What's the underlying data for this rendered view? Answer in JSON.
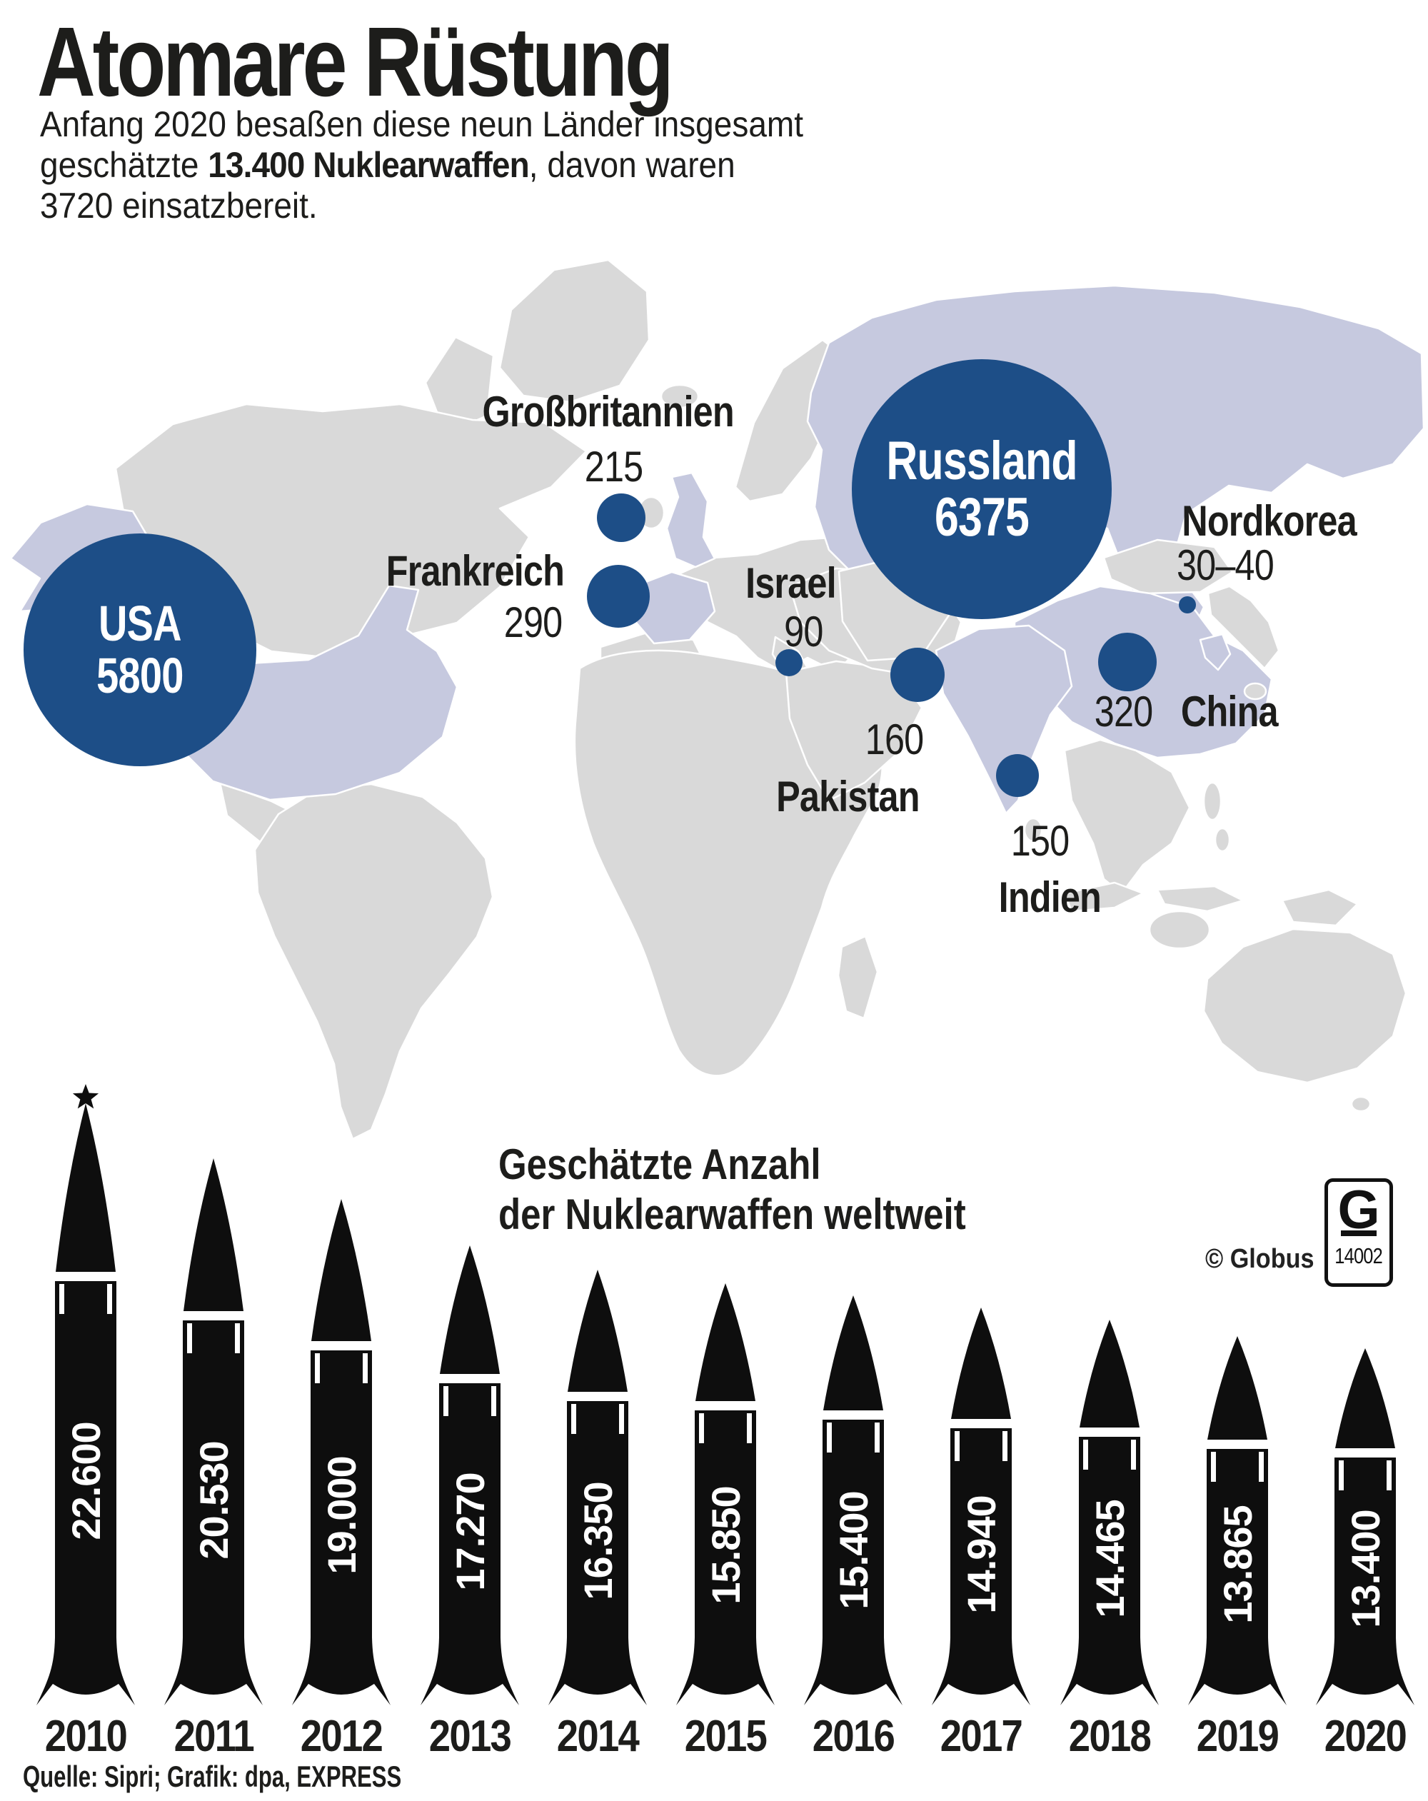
{
  "title": "Atomare Rüstung",
  "subtitle": {
    "line1": "Anfang 2020 besaßen diese neun Länder insgesamt",
    "line2_pre": "geschätzte ",
    "line2_bold": "13.400 Nuklearwaffen",
    "line2_post": ", davon waren",
    "line3": "3720 einsatzbereit."
  },
  "map": {
    "countries": [
      {
        "id": "usa",
        "name": "USA",
        "value": "5800"
      },
      {
        "id": "russland",
        "name": "Russland",
        "value": "6375"
      },
      {
        "id": "grossbritannien",
        "name": "Großbritannien",
        "value": "215"
      },
      {
        "id": "frankreich",
        "name": "Frankreich",
        "value": "290"
      },
      {
        "id": "israel",
        "name": "Israel",
        "value": "90"
      },
      {
        "id": "pakistan",
        "name": "Pakistan",
        "value": "160"
      },
      {
        "id": "china",
        "name": "China",
        "value": "320"
      },
      {
        "id": "indien",
        "name": "Indien",
        "value": "150"
      },
      {
        "id": "nordkorea",
        "name": "Nordkorea",
        "value": "30–40"
      }
    ]
  },
  "chart_data": {
    "type": "bar",
    "title": "Geschätzte Anzahl der Nuklearwaffen weltweit",
    "title_line1": "Geschätzte Anzahl",
    "title_line2": "der Nuklearwaffen weltweit",
    "categories": [
      "2010",
      "2011",
      "2012",
      "2013",
      "2014",
      "2015",
      "2016",
      "2017",
      "2018",
      "2019",
      "2020"
    ],
    "values": [
      22600,
      20530,
      19000,
      17270,
      16350,
      15850,
      15400,
      14940,
      14465,
      13865,
      13400
    ],
    "labels": [
      "22.600",
      "20.530",
      "19.000",
      "17.270",
      "16.350",
      "15.850",
      "15.400",
      "14.940",
      "14.465",
      "13.865",
      "13.400"
    ],
    "ylim": [
      0,
      22600
    ],
    "ylabel": "",
    "xlabel": "",
    "legend": "none",
    "bar_style": "missile-pictogram"
  },
  "branding": {
    "copyright": "© Globus",
    "logo_letter": "G",
    "logo_number": "14002"
  },
  "source": "Quelle: Sipri; Grafik: dpa, EXPRESS",
  "colors": {
    "accent_blue": "#1d4e87",
    "map_gray": "#d9d9d9",
    "map_highlight": "#c6c9df",
    "missile_black": "#0e0e0e",
    "text_black": "#1d1d1b"
  }
}
